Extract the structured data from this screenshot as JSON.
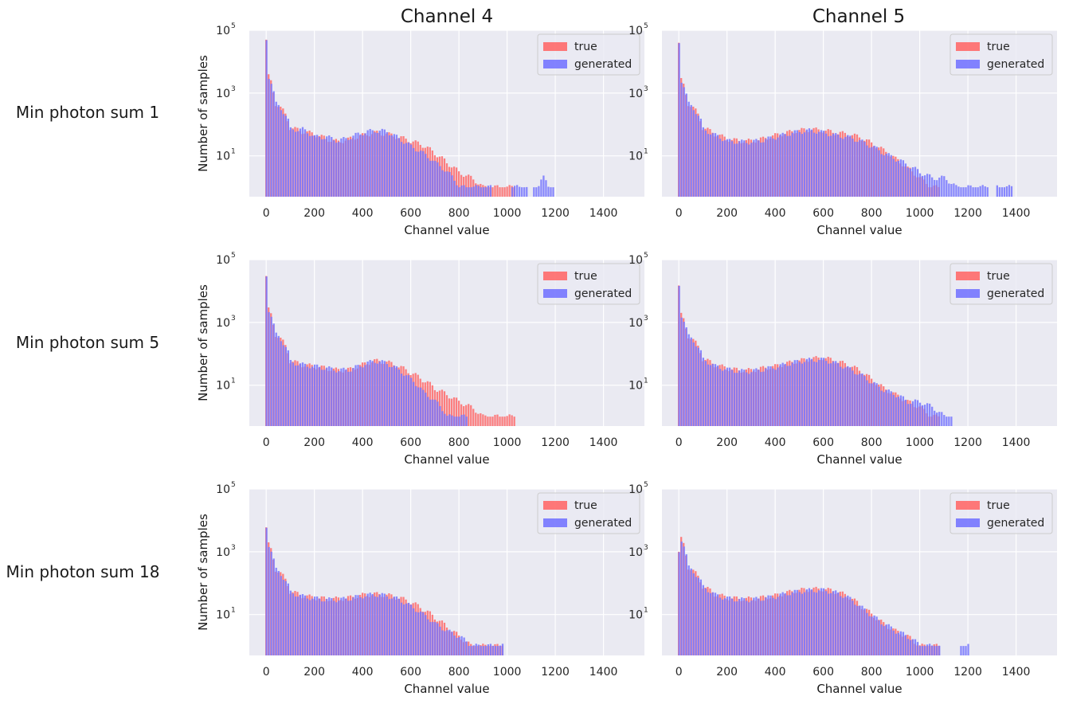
{
  "figure": {
    "column_titles": [
      "Channel 4",
      "Channel 5"
    ],
    "row_labels": [
      "Min photon sum 1",
      "Min photon sum 5",
      "Min photon sum 18"
    ]
  },
  "colors": {
    "panel_bg": "#eaeaf2",
    "grid": "#ffffff",
    "true": "#ff6a6a",
    "generated": "#7575ff"
  },
  "chart_data": [
    {
      "type": "bar",
      "row": 1,
      "column": "Channel 4",
      "xlabel": "Channel value",
      "ylabel": "Number of samples",
      "xticks": [
        0,
        200,
        400,
        600,
        800,
        1000,
        1200,
        1400
      ],
      "xlim": [
        -70,
        1570
      ],
      "yscale": "log",
      "yticks": [
        {
          "base": "10",
          "exp": "1"
        },
        {
          "base": "10",
          "exp": "3"
        },
        {
          "base": "10",
          "exp": "5"
        }
      ],
      "ylim": [
        0.5,
        100000
      ],
      "legend": {
        "location": "top-right",
        "entries": [
          "true",
          "generated"
        ]
      },
      "bin_width": 10,
      "x": [
        0,
        5,
        35,
        100,
        150,
        200,
        250,
        300,
        350,
        400,
        450,
        500,
        550,
        600,
        650,
        700,
        750,
        800,
        850,
        900,
        950,
        1000,
        1050,
        1100,
        1150,
        1200
      ],
      "series": [
        {
          "name": "true",
          "values": [
            50000,
            4000,
            500,
            80,
            60,
            50,
            35,
            28,
            35,
            45,
            55,
            50,
            40,
            30,
            22,
            12,
            6,
            3,
            2,
            1,
            1,
            1,
            0,
            0,
            0,
            0
          ]
        },
        {
          "name": "generated",
          "values": [
            50000,
            4000,
            480,
            70,
            70,
            40,
            40,
            30,
            40,
            55,
            65,
            60,
            35,
            20,
            12,
            6,
            3,
            1,
            1,
            1,
            0,
            0,
            1,
            0,
            2,
            0
          ]
        }
      ]
    },
    {
      "type": "bar",
      "row": 1,
      "column": "Channel 5",
      "xlabel": "Channel value",
      "ylabel": "Number of samples",
      "xticks": [
        0,
        200,
        400,
        600,
        800,
        1000,
        1200,
        1400
      ],
      "xlim": [
        -70,
        1570
      ],
      "yscale": "log",
      "yticks": [
        {
          "base": "10",
          "exp": "1"
        },
        {
          "base": "10",
          "exp": "3"
        },
        {
          "base": "10",
          "exp": "5"
        }
      ],
      "ylim": [
        0.5,
        100000
      ],
      "legend": {
        "location": "top-right",
        "entries": [
          "true",
          "generated"
        ]
      },
      "bin_width": 10,
      "x": [
        0,
        5,
        35,
        100,
        150,
        200,
        250,
        300,
        350,
        400,
        450,
        500,
        550,
        600,
        650,
        700,
        750,
        800,
        850,
        900,
        950,
        1000,
        1050,
        1100,
        1150,
        1200,
        1250,
        1300,
        1350,
        1400
      ],
      "series": [
        {
          "name": "true",
          "values": [
            40000,
            3000,
            500,
            80,
            50,
            35,
            30,
            30,
            35,
            45,
            55,
            65,
            70,
            65,
            55,
            50,
            40,
            25,
            15,
            8,
            4,
            2,
            1,
            0,
            0,
            0,
            0,
            0,
            0,
            0
          ]
        },
        {
          "name": "generated",
          "values": [
            40000,
            3000,
            480,
            70,
            45,
            30,
            28,
            28,
            32,
            40,
            50,
            60,
            65,
            55,
            45,
            40,
            30,
            20,
            12,
            8,
            5,
            3,
            2,
            2,
            1,
            1,
            1,
            0,
            1,
            0
          ]
        }
      ]
    },
    {
      "type": "bar",
      "row": 2,
      "column": "Channel 4",
      "xlabel": "Channel value",
      "ylabel": "Number of samples",
      "xticks": [
        0,
        200,
        400,
        600,
        800,
        1000,
        1200,
        1400
      ],
      "xlim": [
        -70,
        1570
      ],
      "yscale": "log",
      "yticks": [
        {
          "base": "10",
          "exp": "1"
        },
        {
          "base": "10",
          "exp": "3"
        },
        {
          "base": "10",
          "exp": "5"
        }
      ],
      "ylim": [
        0.5,
        100000
      ],
      "legend": {
        "location": "top-right",
        "entries": [
          "true",
          "generated"
        ]
      },
      "bin_width": 10,
      "x": [
        0,
        5,
        35,
        100,
        150,
        200,
        250,
        300,
        350,
        400,
        450,
        500,
        550,
        600,
        650,
        700,
        750,
        800,
        850,
        900,
        950,
        1000,
        1050,
        1100,
        1150,
        1200
      ],
      "series": [
        {
          "name": "true",
          "values": [
            30000,
            3000,
            450,
            60,
            45,
            40,
            35,
            30,
            32,
            45,
            60,
            55,
            40,
            25,
            15,
            8,
            5,
            3,
            2,
            1,
            1,
            1,
            0,
            0,
            0,
            0
          ]
        },
        {
          "name": "generated",
          "values": [
            30000,
            3000,
            430,
            55,
            45,
            40,
            35,
            30,
            32,
            45,
            60,
            50,
            30,
            15,
            6,
            3,
            1,
            1,
            0,
            0,
            0,
            0,
            0,
            0,
            0,
            0
          ]
        }
      ]
    },
    {
      "type": "bar",
      "row": 2,
      "column": "Channel 5",
      "xlabel": "Channel value",
      "ylabel": "Number of samples",
      "xticks": [
        0,
        200,
        400,
        600,
        800,
        1000,
        1200,
        1400
      ],
      "xlim": [
        -70,
        1570
      ],
      "yscale": "log",
      "yticks": [
        {
          "base": "10",
          "exp": "1"
        },
        {
          "base": "10",
          "exp": "3"
        },
        {
          "base": "10",
          "exp": "5"
        }
      ],
      "ylim": [
        0.5,
        100000
      ],
      "legend": {
        "location": "top-right",
        "entries": [
          "true",
          "generated"
        ]
      },
      "bin_width": 10,
      "x": [
        0,
        5,
        35,
        100,
        150,
        200,
        250,
        300,
        350,
        400,
        450,
        500,
        550,
        600,
        650,
        700,
        750,
        800,
        850,
        900,
        950,
        1000,
        1050,
        1100,
        1150,
        1200
      ],
      "series": [
        {
          "name": "true",
          "values": [
            15000,
            2000,
            400,
            70,
            45,
            35,
            30,
            30,
            35,
            40,
            50,
            60,
            70,
            75,
            60,
            45,
            30,
            15,
            8,
            5,
            3,
            2,
            1,
            0,
            0,
            0
          ]
        },
        {
          "name": "generated",
          "values": [
            15000,
            2000,
            380,
            65,
            40,
            32,
            28,
            28,
            32,
            38,
            48,
            58,
            65,
            65,
            50,
            35,
            22,
            12,
            7,
            5,
            3,
            3,
            2,
            1,
            0,
            0
          ]
        }
      ]
    },
    {
      "type": "bar",
      "row": 3,
      "column": "Channel 4",
      "xlabel": "Channel value",
      "ylabel": "Number of samples",
      "xticks": [
        0,
        200,
        400,
        600,
        800,
        1000,
        1200,
        1400
      ],
      "xlim": [
        -70,
        1570
      ],
      "yscale": "log",
      "yticks": [
        {
          "base": "10",
          "exp": "1"
        },
        {
          "base": "10",
          "exp": "3"
        },
        {
          "base": "10",
          "exp": "5"
        }
      ],
      "ylim": [
        0.5,
        100000
      ],
      "legend": {
        "location": "top-right",
        "entries": [
          "true",
          "generated"
        ]
      },
      "bin_width": 10,
      "x": [
        0,
        5,
        35,
        100,
        150,
        200,
        250,
        300,
        350,
        400,
        450,
        500,
        550,
        600,
        650,
        700,
        750,
        800,
        850,
        900,
        950,
        1000,
        1050,
        1100,
        1150,
        1200
      ],
      "series": [
        {
          "name": "true",
          "values": [
            6000,
            2000,
            300,
            55,
            40,
            35,
            32,
            32,
            35,
            42,
            45,
            42,
            35,
            25,
            15,
            8,
            4,
            2,
            1,
            1,
            1,
            0,
            0,
            0,
            0,
            0
          ]
        },
        {
          "name": "generated",
          "values": [
            6000,
            2000,
            280,
            50,
            38,
            33,
            30,
            30,
            33,
            40,
            44,
            40,
            30,
            18,
            10,
            5,
            3,
            2,
            1,
            1,
            1,
            0,
            0,
            0,
            0,
            0
          ]
        }
      ]
    },
    {
      "type": "bar",
      "row": 3,
      "column": "Channel 5",
      "xlabel": "Channel value",
      "ylabel": "Number of samples",
      "xticks": [
        0,
        200,
        400,
        600,
        800,
        1000,
        1200,
        1400
      ],
      "xlim": [
        -70,
        1570
      ],
      "yscale": "log",
      "yticks": [
        {
          "base": "10",
          "exp": "1"
        },
        {
          "base": "10",
          "exp": "3"
        },
        {
          "base": "10",
          "exp": "5"
        }
      ],
      "ylim": [
        0.5,
        100000
      ],
      "legend": {
        "location": "top-right",
        "entries": [
          "true",
          "generated"
        ]
      },
      "bin_width": 10,
      "x": [
        0,
        5,
        35,
        100,
        150,
        200,
        250,
        300,
        350,
        400,
        450,
        500,
        550,
        600,
        650,
        700,
        750,
        800,
        850,
        900,
        950,
        1000,
        1050,
        1100,
        1150,
        1200
      ],
      "series": [
        {
          "name": "true",
          "values": [
            1000,
            3000,
            350,
            80,
            45,
            35,
            32,
            32,
            35,
            40,
            50,
            60,
            65,
            65,
            55,
            40,
            20,
            10,
            5,
            3,
            2,
            1,
            1,
            0,
            0,
            0
          ]
        },
        {
          "name": "generated",
          "values": [
            1000,
            3000,
            330,
            75,
            42,
            33,
            30,
            30,
            33,
            38,
            48,
            55,
            60,
            60,
            50,
            35,
            18,
            9,
            5,
            3,
            2,
            1,
            1,
            0,
            0,
            1
          ]
        }
      ]
    }
  ]
}
